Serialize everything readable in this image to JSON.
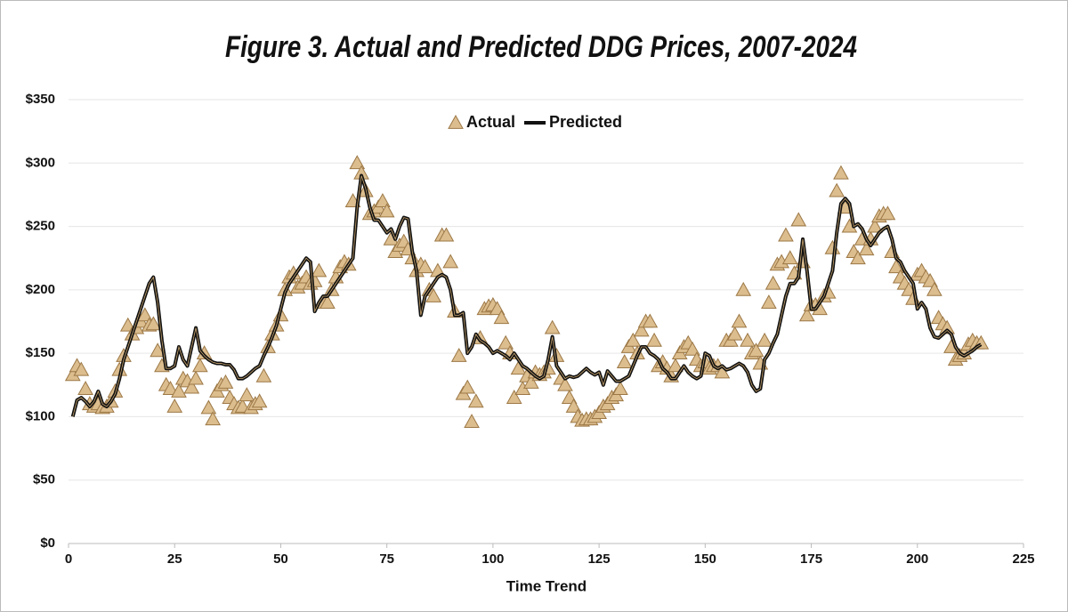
{
  "chart_data": {
    "type": "line",
    "title": "Figure 3. Actual and Predicted DDG Prices, 2007-2024",
    "x_label": "Time Trend",
    "legend": "top",
    "grid": true,
    "xlim": [
      0,
      225
    ],
    "xticks": [
      0,
      25,
      50,
      75,
      100,
      125,
      150,
      175,
      200,
      225
    ],
    "ylim": [
      0,
      350
    ],
    "yticks": [
      {
        "value": 0,
        "label": "$0"
      },
      {
        "value": 50,
        "label": "$50"
      },
      {
        "value": 100,
        "label": "$100"
      },
      {
        "value": 150,
        "label": "$150"
      },
      {
        "value": 200,
        "label": "$200"
      },
      {
        "value": 250,
        "label": "$250"
      },
      {
        "value": 300,
        "label": "$300"
      },
      {
        "value": 350,
        "label": "$350"
      }
    ],
    "x": [
      1,
      2,
      3,
      4,
      5,
      6,
      7,
      8,
      9,
      10,
      11,
      12,
      13,
      14,
      15,
      16,
      17,
      18,
      19,
      20,
      21,
      22,
      23,
      24,
      25,
      26,
      27,
      28,
      29,
      30,
      31,
      32,
      33,
      34,
      35,
      36,
      37,
      38,
      39,
      40,
      41,
      42,
      43,
      44,
      45,
      46,
      47,
      48,
      49,
      50,
      51,
      52,
      53,
      54,
      55,
      56,
      57,
      58,
      59,
      60,
      61,
      62,
      63,
      64,
      65,
      66,
      67,
      68,
      69,
      70,
      71,
      72,
      73,
      74,
      75,
      76,
      77,
      78,
      79,
      80,
      81,
      82,
      83,
      84,
      85,
      86,
      87,
      88,
      89,
      90,
      91,
      92,
      93,
      94,
      95,
      96,
      97,
      98,
      99,
      100,
      101,
      102,
      103,
      104,
      105,
      106,
      107,
      108,
      109,
      110,
      111,
      112,
      113,
      114,
      115,
      116,
      117,
      118,
      119,
      120,
      121,
      122,
      123,
      124,
      125,
      126,
      127,
      128,
      129,
      130,
      131,
      132,
      133,
      134,
      135,
      136,
      137,
      138,
      139,
      140,
      141,
      142,
      143,
      144,
      145,
      146,
      147,
      148,
      149,
      150,
      151,
      152,
      153,
      154,
      155,
      156,
      157,
      158,
      159,
      160,
      161,
      162,
      163,
      164,
      165,
      166,
      167,
      168,
      169,
      170,
      171,
      172,
      173,
      174,
      175,
      176,
      177,
      178,
      179,
      180,
      181,
      182,
      183,
      184,
      185,
      186,
      187,
      188,
      189,
      190,
      191,
      192,
      193,
      194,
      195,
      196,
      197,
      198,
      199,
      200,
      201,
      202,
      203,
      204,
      205,
      206,
      207,
      208,
      209,
      210,
      211,
      212,
      213,
      214,
      215
    ],
    "series": [
      {
        "name": "Actual",
        "color": "#dcbd8e",
        "marker": "triangle",
        "values": [
          133,
          140,
          137,
          122,
          110,
          108,
          110,
          107,
          108,
          112,
          120,
          137,
          148,
          172,
          165,
          170,
          175,
          180,
          172,
          173,
          152,
          140,
          125,
          122,
          108,
          120,
          130,
          128,
          123,
          130,
          140,
          150,
          107,
          98,
          120,
          125,
          127,
          115,
          110,
          107,
          108,
          117,
          107,
          110,
          112,
          132,
          155,
          165,
          172,
          180,
          200,
          210,
          213,
          202,
          205,
          210,
          205,
          207,
          215,
          190,
          190,
          200,
          210,
          218,
          222,
          220,
          270,
          300,
          292,
          278,
          260,
          262,
          265,
          270,
          262,
          240,
          230,
          235,
          238,
          232,
          225,
          215,
          220,
          218,
          200,
          195,
          215,
          243,
          243,
          222,
          183,
          148,
          118,
          123,
          96,
          112,
          162,
          185,
          187,
          188,
          185,
          178,
          158,
          150,
          115,
          138,
          122,
          132,
          127,
          135,
          133,
          135,
          138,
          170,
          148,
          130,
          125,
          115,
          108,
          100,
          97,
          98,
          98,
          100,
          103,
          108,
          110,
          115,
          117,
          122,
          143,
          155,
          160,
          150,
          168,
          175,
          175,
          160,
          140,
          143,
          138,
          132,
          140,
          150,
          155,
          158,
          153,
          145,
          140,
          143,
          138,
          140,
          140,
          135,
          160,
          160,
          165,
          175,
          200,
          160,
          150,
          152,
          142,
          160,
          190,
          205,
          220,
          222,
          243,
          225,
          213,
          255,
          222,
          180,
          188,
          188,
          185,
          195,
          198,
          233,
          278,
          292,
          265,
          250,
          230,
          225,
          240,
          232,
          240,
          250,
          258,
          260,
          260,
          230,
          218,
          210,
          205,
          200,
          193,
          212,
          215,
          210,
          207,
          200,
          178,
          173,
          170,
          155,
          145,
          148,
          150,
          157,
          160,
          158,
          158
        ]
      },
      {
        "name": "Predicted",
        "color": "#111111",
        "marker": "line",
        "values": [
          100,
          113,
          115,
          112,
          108,
          112,
          120,
          110,
          108,
          112,
          118,
          130,
          145,
          155,
          165,
          175,
          185,
          195,
          205,
          210,
          190,
          160,
          138,
          138,
          140,
          155,
          145,
          140,
          155,
          170,
          152,
          148,
          145,
          143,
          142,
          142,
          141,
          141,
          137,
          130,
          130,
          132,
          135,
          138,
          140,
          148,
          155,
          163,
          172,
          185,
          198,
          205,
          210,
          215,
          220,
          225,
          222,
          183,
          190,
          195,
          195,
          200,
          205,
          210,
          215,
          220,
          225,
          265,
          290,
          280,
          265,
          255,
          255,
          250,
          245,
          248,
          240,
          250,
          257,
          256,
          230,
          215,
          180,
          195,
          200,
          205,
          210,
          212,
          210,
          200,
          180,
          180,
          182,
          150,
          155,
          165,
          160,
          158,
          155,
          150,
          152,
          150,
          148,
          145,
          150,
          145,
          140,
          138,
          135,
          132,
          130,
          132,
          145,
          163,
          140,
          135,
          130,
          132,
          131,
          132,
          135,
          138,
          135,
          133,
          135,
          125,
          136,
          132,
          128,
          128,
          130,
          132,
          140,
          148,
          155,
          155,
          150,
          148,
          145,
          138,
          135,
          130,
          130,
          135,
          140,
          135,
          132,
          130,
          132,
          150,
          148,
          140,
          138,
          140,
          137,
          138,
          140,
          142,
          140,
          135,
          125,
          120,
          122,
          145,
          150,
          158,
          165,
          180,
          195,
          205,
          205,
          210,
          240,
          215,
          185,
          185,
          190,
          195,
          205,
          215,
          245,
          268,
          272,
          268,
          250,
          252,
          248,
          240,
          235,
          240,
          245,
          248,
          250,
          240,
          225,
          222,
          215,
          210,
          205,
          185,
          190,
          185,
          170,
          163,
          162,
          165,
          168,
          165,
          155,
          150,
          148,
          150,
          152,
          155,
          157
        ]
      }
    ]
  }
}
